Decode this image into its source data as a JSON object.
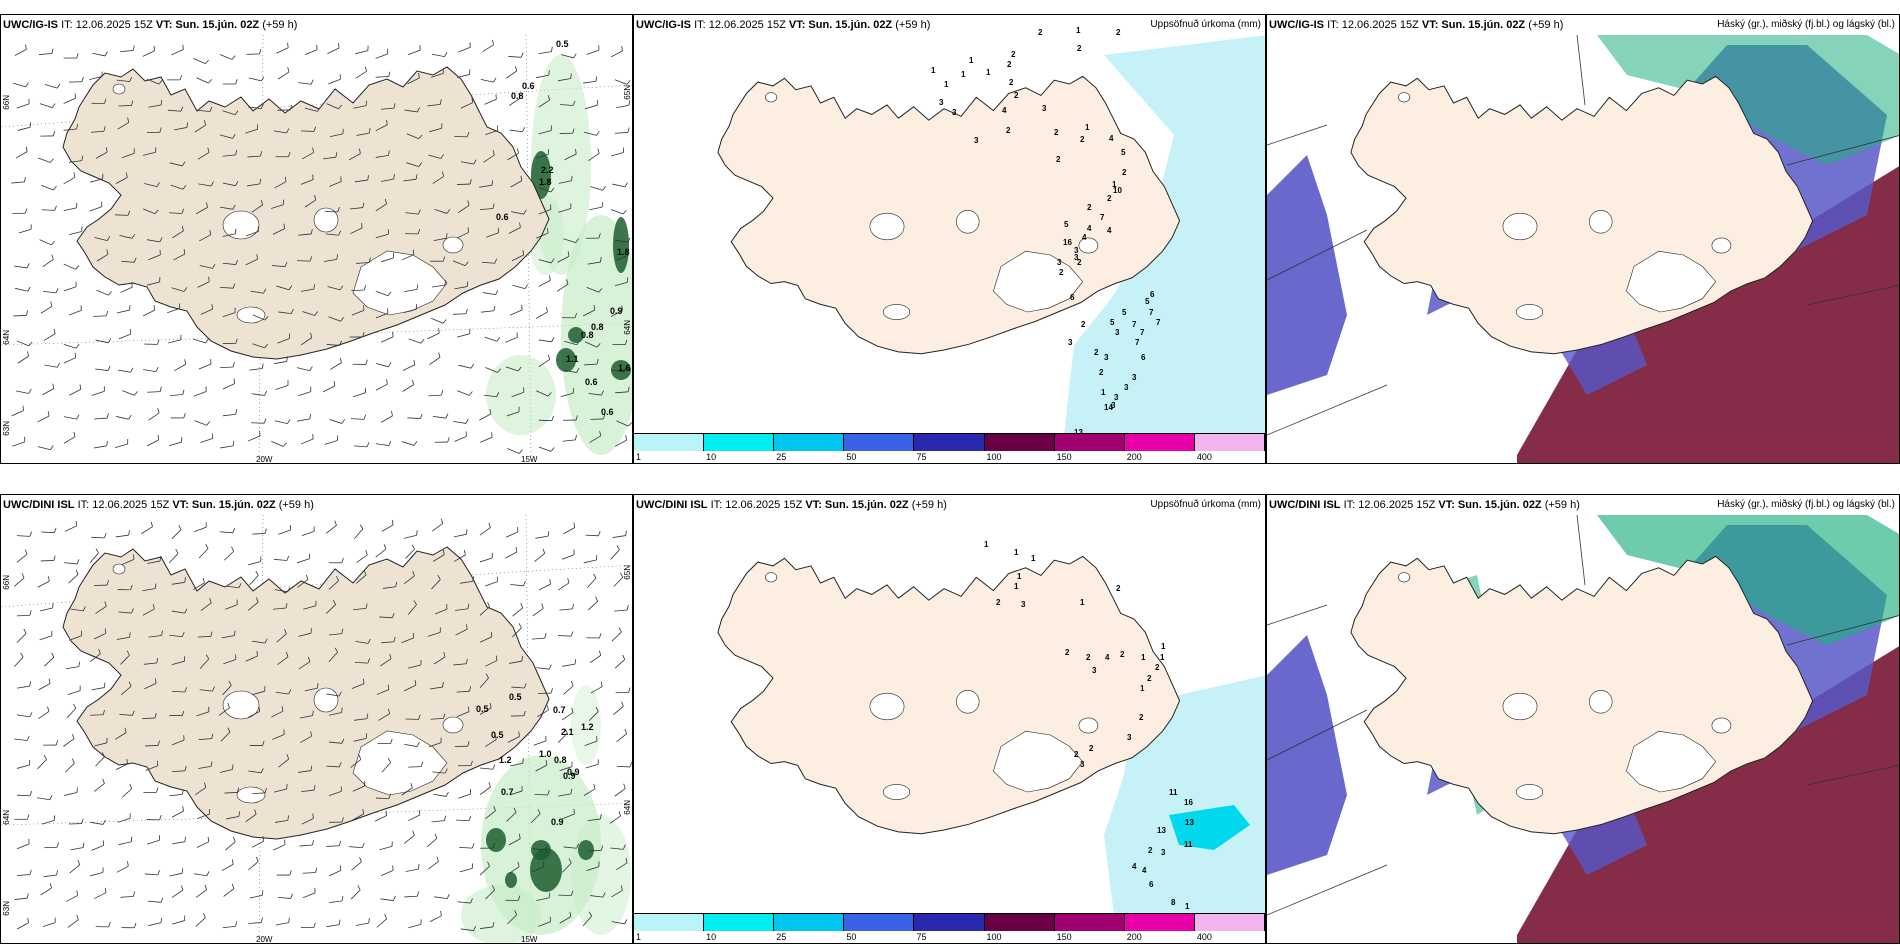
{
  "panels": {
    "top_left": {
      "model": "UWC/IG-IS",
      "it_text": "IT: 12.06.2025 15Z",
      "vt_text": "VT: Sun. 15.jún. 02Z",
      "lead": "(+59 h)",
      "right_title": "",
      "lat_labels": [
        "66N",
        "64N",
        "63N",
        "65N",
        "64N"
      ],
      "lon_labels": [
        "20W",
        "15W"
      ],
      "values": [
        "0.5",
        "0.6",
        "0.8",
        "2.2",
        "1.8",
        "0.6",
        "1.8",
        "0.9",
        "0.8",
        "0.8",
        "1.1",
        "0.6",
        "0.6",
        "1.6"
      ]
    },
    "top_mid": {
      "model": "UWC/IG-IS",
      "it_text": "IT: 12.06.2025 15Z",
      "vt_text": "VT: Sun. 15.jún. 02Z",
      "lead": "(+59 h)",
      "right_title": "Uppsöfnuð úrkoma (mm)",
      "values": [
        "1",
        "2",
        "2",
        "2",
        "2",
        "2",
        "1",
        "1",
        "1",
        "1",
        "1",
        "3",
        "3",
        "2",
        "2",
        "3",
        "4",
        "3",
        "2",
        "2",
        "1",
        "2",
        "2",
        "5",
        "4",
        "2",
        "1",
        "2",
        "2",
        "7",
        "10",
        "4",
        "3",
        "4",
        "16",
        "5",
        "3",
        "4",
        "3",
        "2",
        "2",
        "6",
        "2",
        "3",
        "2",
        "3",
        "2",
        "1",
        "3",
        "13",
        "14",
        "3",
        "3",
        "3",
        "3",
        "6",
        "7",
        "5",
        "5",
        "6",
        "5",
        "7",
        "7",
        "7",
        "7"
      ]
    },
    "top_right": {
      "model": "UWC/IG-IS",
      "it_text": "IT: 12.06.2025 15Z",
      "vt_text": "VT: Sun. 15.jún. 02Z",
      "lead": "(+59 h)",
      "right_title": "Háský (gr.), miðský (fj.bl.) og lágský (bl.)"
    },
    "bottom_left": {
      "model": "UWC/DINI ISL",
      "it_text": "IT: 12.06.2025 15Z",
      "vt_text": "VT: Sun. 15.jún. 02Z",
      "lead": "(+59 h)",
      "right_title": "",
      "lat_labels": [
        "66N",
        "64N",
        "63N",
        "65N",
        "64N"
      ],
      "lon_labels": [
        "20W",
        "15W"
      ],
      "values": [
        "0.5",
        "0.5",
        "0.5",
        "0.7",
        "2.1",
        "1.2",
        "1.0",
        "1.2",
        "0.8",
        "0.9",
        "0.9",
        "0.7",
        "0.9"
      ]
    },
    "bottom_mid": {
      "model": "UWC/DINI ISL",
      "it_text": "IT: 12.06.2025 15Z",
      "vt_text": "VT: Sun. 15.jún. 02Z",
      "lead": "(+59 h)",
      "right_title": "Uppsöfnuð úrkoma (mm)",
      "values": [
        "2",
        "1",
        "1",
        "1",
        "1",
        "1",
        "2",
        "3",
        "1",
        "2",
        "2",
        "3",
        "4",
        "2",
        "1",
        "1",
        "1",
        "2",
        "2",
        "1",
        "2",
        "3",
        "2",
        "2",
        "3",
        "11",
        "16",
        "13",
        "13",
        "11",
        "3",
        "2",
        "4",
        "4",
        "6",
        "8",
        "1"
      ]
    },
    "bottom_right": {
      "model": "UWC/DINI ISL",
      "it_text": "IT: 12.06.2025 15Z",
      "vt_text": "VT: Sun. 15.jún. 02Z",
      "lead": "(+59 h)",
      "right_title": "Háský (gr.), miðský (fj.bl.) og lágský (bl.)"
    }
  },
  "colorbar": {
    "labels": [
      "1",
      "10",
      "25",
      "50",
      "75",
      "100",
      "150",
      "200",
      "400"
    ],
    "colors": [
      "#b8f4f8",
      "#00eef0",
      "#00c6ee",
      "#3a62e6",
      "#2a28b0",
      "#6a0048",
      "#a00070",
      "#e800a8",
      "#f2b4ee"
    ]
  },
  "colors": {
    "land": "#eee3d3",
    "land_mid": "#fcefe2",
    "precip_light": "#c6f2f7",
    "green_light": "#c8ecc8",
    "green_dark": "#1c5e2e",
    "cloud_high": "#20b080",
    "cloud_mid": "#5858c8",
    "cloud_low": "#7a1a38"
  }
}
